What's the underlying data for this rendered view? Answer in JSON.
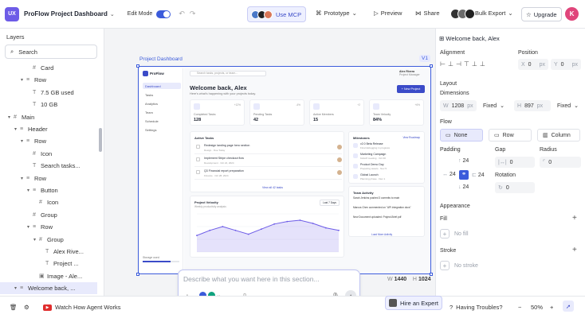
{
  "topbar": {
    "logo_text": "UX",
    "project_title": "ProFlow Project Dashboard",
    "edit_mode_label": "Edit Mode",
    "mcp_label": "Use MCP",
    "prototype_label": "Prototype",
    "preview_label": "Preview",
    "share_label": "Share",
    "bulk_export_label": "Bulk Export",
    "upgrade_label": "Upgrade",
    "user_initial": "K",
    "accent": "#3b5bdb"
  },
  "layers": {
    "title": "Layers",
    "search_placeholder": "Search",
    "items": [
      {
        "label": "Card",
        "depth": 5,
        "icon": "frame-icon",
        "expand": ""
      },
      {
        "label": "Row",
        "depth": 4,
        "icon": "row-icon",
        "expand": "▾"
      },
      {
        "label": "7.5 GB used",
        "depth": 5,
        "icon": "text-icon",
        "expand": ""
      },
      {
        "label": "10 GB",
        "depth": 5,
        "icon": "text-icon",
        "expand": ""
      },
      {
        "label": "Main",
        "depth": 2,
        "icon": "frame-icon",
        "expand": "▾"
      },
      {
        "label": "Header",
        "depth": 3,
        "icon": "row-icon",
        "expand": "▾"
      },
      {
        "label": "Row",
        "depth": 4,
        "icon": "row-icon",
        "expand": "▾"
      },
      {
        "label": "Icon",
        "depth": 5,
        "icon": "frame-icon",
        "expand": ""
      },
      {
        "label": "Search tasks...",
        "depth": 5,
        "icon": "text-icon",
        "expand": ""
      },
      {
        "label": "Row",
        "depth": 4,
        "icon": "row-icon",
        "expand": "▾"
      },
      {
        "label": "Button",
        "depth": 5,
        "icon": "row-icon",
        "expand": "▾"
      },
      {
        "label": "Icon",
        "depth": 6,
        "icon": "frame-icon",
        "expand": ""
      },
      {
        "label": "Group",
        "depth": 5,
        "icon": "frame-icon",
        "expand": ""
      },
      {
        "label": "Row",
        "depth": 5,
        "icon": "row-icon",
        "expand": "▾"
      },
      {
        "label": "Group",
        "depth": 6,
        "icon": "frame-icon",
        "expand": "▾"
      },
      {
        "label": "Alex Rive...",
        "depth": 7,
        "icon": "text-icon",
        "expand": ""
      },
      {
        "label": "Project ...",
        "depth": 7,
        "icon": "text-icon",
        "expand": ""
      },
      {
        "label": "Image - Ale...",
        "depth": 6,
        "icon": "image-icon",
        "expand": ""
      },
      {
        "label": "Welcome back, ...",
        "depth": 3,
        "icon": "row-icon",
        "expand": "▾"
      }
    ]
  },
  "canvas": {
    "frame_label": "Project Dashboard",
    "version": "V1",
    "width_label": "W",
    "width": "1440",
    "height_label": "H",
    "height": "1024"
  },
  "app": {
    "brand": "ProFlow",
    "nav": [
      "Dashboard",
      "Tasks",
      "Analytics",
      "Team",
      "Schedule",
      "Settings"
    ],
    "storage_label": "Storage used",
    "search_placeholder": "Search tasks, projects, or team...",
    "user_name": "Alex Rivera",
    "user_role": "Project Manager",
    "welcome": "Welcome back, Alex",
    "welcome_sub": "Here's what's happening with your projects today.",
    "new_project": "+ New Project",
    "stats": [
      {
        "label": "Completed Tasks",
        "value": "128",
        "badge": "+12%"
      },
      {
        "label": "Pending Tasks",
        "value": "42",
        "badge": "-4%"
      },
      {
        "label": "Active Members",
        "value": "15",
        "badge": "+2"
      },
      {
        "label": "Team Velocity",
        "value": "84%",
        "badge": "+6%"
      }
    ],
    "active_tasks_title": "Active Tasks",
    "tasks": [
      {
        "name": "Redesign landing page hero section",
        "meta": "Design · Due Today"
      },
      {
        "name": "Implement Stripe checkout flow",
        "meta": "Development · Oct 24, 2024"
      },
      {
        "name": "Q3 Financial report preparation",
        "meta": "Finance · Oct 28, 2024"
      }
    ],
    "view_all": "View all 42 tasks",
    "milestones_title": "Milestones",
    "milestones_link": "View Roadmap",
    "milestones": [
      {
        "name": "v2.0 Beta Release",
        "meta": "Final debugging in progress"
      },
      {
        "name": "Marketing Campaign",
        "meta": "Kickoff meeting · Oct 30"
      },
      {
        "name": "Product Demo Day",
        "meta": "Preparing assets · Nov 5"
      },
      {
        "name": "Global Launch",
        "meta": "Planning phase · Dec 1"
      }
    ],
    "velocity_title": "Project Velocity",
    "velocity_sub": "Weekly productivity analysis",
    "velocity_filter": "Last 7 Days",
    "activity_title": "Team Activity",
    "activity": [
      "Sarah Jenkins pushed 3 commits to main",
      "Marcus Chen commented on \"API integration docs\"",
      "New Document uploaded: Project-Brief.pdf"
    ],
    "load_more": "Load More Activity"
  },
  "chart_data": {
    "type": "area",
    "title": "Project Velocity",
    "x": [
      1,
      2,
      3,
      4,
      5,
      6,
      7,
      8,
      9,
      10,
      11,
      12
    ],
    "values": [
      26,
      34,
      40,
      34,
      28,
      36,
      44,
      48,
      50,
      45,
      38,
      34
    ],
    "ylim": [
      0,
      60
    ],
    "color": "#6d5ce7"
  },
  "right_panel": {
    "title": "Welcome back, Alex",
    "alignment_label": "Alignment",
    "position_label": "Position",
    "x_label": "X",
    "x_value": "0",
    "y_label": "Y",
    "y_value": "0",
    "unit": "px",
    "layout_label": "Layout",
    "dimensions_label": "Dimensions",
    "w_label": "W",
    "w_value": "1208",
    "w_mode": "Fixed",
    "h_label": "H",
    "h_value": "897",
    "h_mode": "Fixed",
    "flow_label": "Flow",
    "flow_none": "None",
    "flow_row": "Row",
    "flow_column": "Column",
    "padding_label": "Padding",
    "pad_top": "24",
    "pad_left": "24",
    "pad_right": "24",
    "pad_bottom": "24",
    "gap_label": "Gap",
    "gap_value": "0",
    "radius_label": "Radius",
    "radius_value": "0",
    "rotation_label": "Rotation",
    "rotation_value": "0",
    "appearance_label": "Appearance",
    "fill_label": "Fill",
    "no_fill": "No fill",
    "stroke_label": "Stroke",
    "no_stroke": "No stroke"
  },
  "prompt": {
    "placeholder": "Describe what you want here in this section..."
  },
  "bottombar": {
    "watch_label": "Watch How Agent Works",
    "hire_label": "Hire an Expert",
    "trouble_label": "Having Troubles?",
    "zoom": "50%"
  }
}
